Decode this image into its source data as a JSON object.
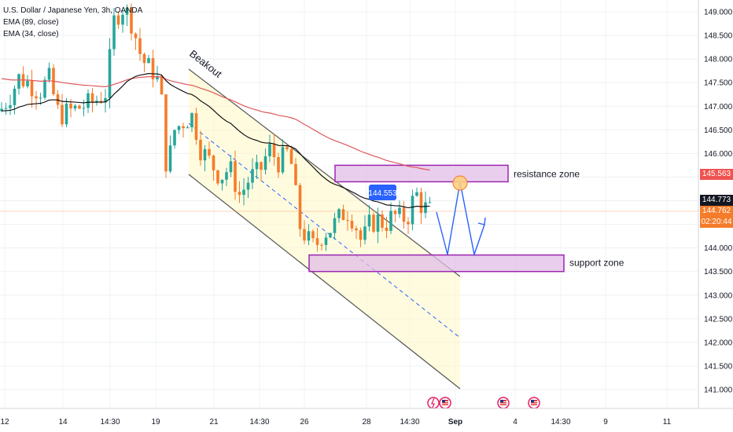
{
  "legend": {
    "title": "U.S. Dollar / Japanese Yen, 3h, OANDA",
    "ema_long": "EMA (89, close)",
    "ema_short": "EMA (34, close)"
  },
  "chart_data": {
    "type": "candlestick",
    "symbol": "USDJPY",
    "ylim": [
      140.8,
      149.2
    ],
    "y_ticks": [
      "149.000",
      "148.500",
      "148.000",
      "147.500",
      "147.000",
      "146.500",
      "146.000",
      "145.500",
      "145.000",
      "144.500",
      "144.000",
      "143.500",
      "143.000",
      "142.500",
      "142.000",
      "141.500",
      "141.000"
    ],
    "x_ticks": [
      "12",
      "14",
      "14:30",
      "19",
      "21",
      "14:30",
      "26",
      "28",
      "14:30",
      "Sep",
      "4",
      "14:30",
      "9",
      "11"
    ],
    "annotations": {
      "breakout_label": "Beakout",
      "resistance_label": "resistance zone",
      "support_label": "support zone",
      "price_callout": "144.553",
      "resistance_zone": [
        145.4,
        145.75
      ],
      "support_zone": [
        143.5,
        143.85
      ]
    },
    "price_tags": {
      "ema89_value": "145.563",
      "ema34_value": "144.773",
      "last_price": "144.762",
      "countdown": "02:20:44"
    },
    "colors": {
      "up": "#26a69a",
      "down": "#f57c2a",
      "ema89": "#e0585a",
      "ema34": "#000000",
      "projection": "#2962ff",
      "zone_fill": "#e1bee7",
      "zone_border": "#9c27b0"
    }
  }
}
